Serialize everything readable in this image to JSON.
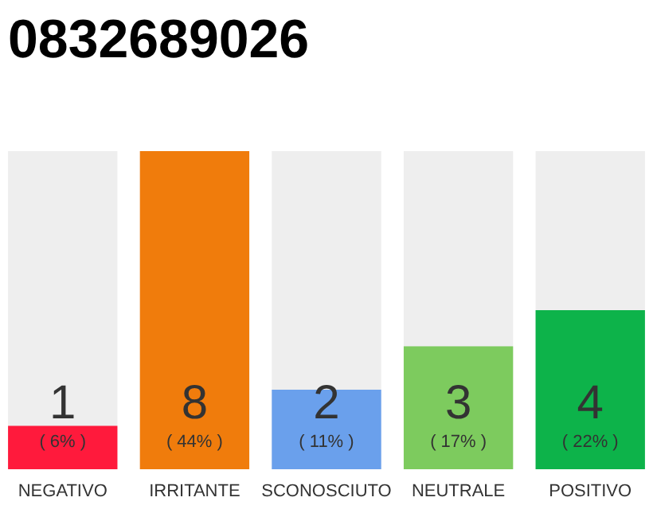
{
  "chart_data": {
    "type": "bar",
    "title": "0832689026",
    "categories": [
      "NEGATIVO",
      "IRRITANTE",
      "SCONOSCIUTO",
      "NEUTRALE",
      "POSITIVO"
    ],
    "values": [
      6,
      44,
      11,
      17,
      22
    ],
    "colors": [
      "#ff1a3c",
      "#f07c0c",
      "#6aa0ec",
      "#7dcb5e",
      "#0db34a"
    ],
    "value_labels": [
      "( 6% )",
      "( 44% )",
      "( 11% )",
      "( 17% )",
      "( 22% )"
    ],
    "annotations": [
      "1",
      "8",
      "2",
      "3",
      "4"
    ]
  }
}
